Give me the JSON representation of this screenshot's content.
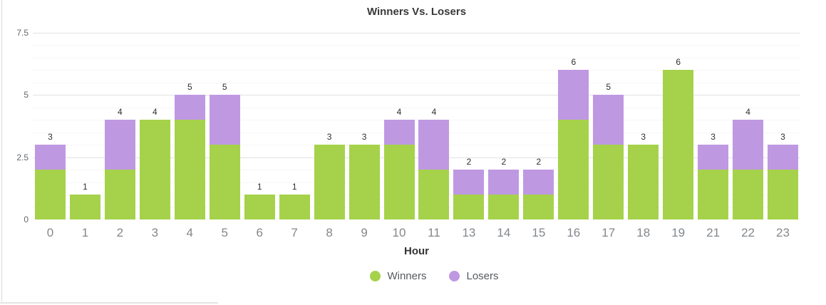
{
  "title": "Winners Vs. Losers",
  "chart_data": {
    "type": "bar",
    "stacked": true,
    "title": "Winners Vs. Losers",
    "xlabel": "Hour",
    "ylabel": "",
    "categories": [
      "0",
      "1",
      "2",
      "3",
      "4",
      "5",
      "6",
      "7",
      "8",
      "9",
      "10",
      "11",
      "13",
      "14",
      "15",
      "16",
      "17",
      "18",
      "19",
      "21",
      "22",
      "23"
    ],
    "series": [
      {
        "name": "Winners",
        "color": "#a5d24a",
        "values": [
          2,
          1,
          2,
          4,
          4,
          3,
          1,
          1,
          3,
          3,
          3,
          2,
          1,
          1,
          1,
          4,
          3,
          3,
          6,
          2,
          2,
          2
        ]
      },
      {
        "name": "Losers",
        "color": "#bf98e2",
        "values": [
          1,
          0,
          2,
          0,
          1,
          2,
          0,
          0,
          0,
          0,
          1,
          2,
          1,
          1,
          1,
          2,
          2,
          0,
          0,
          1,
          2,
          1
        ]
      }
    ],
    "totals": [
      3,
      1,
      4,
      4,
      5,
      5,
      1,
      1,
      3,
      3,
      4,
      4,
      2,
      2,
      2,
      6,
      5,
      3,
      6,
      3,
      4,
      3
    ],
    "ylim": [
      0,
      7.5
    ],
    "yticks": [
      0,
      2.5,
      5,
      7.5
    ],
    "minor_step": 0.5,
    "grid": true,
    "legend_position": "bottom"
  },
  "colors": {
    "major_grid": "#e2e2e2",
    "minor_grid": "#f6f6f6",
    "axis_text": "#82878c",
    "value_label": "#2e2e2e"
  }
}
